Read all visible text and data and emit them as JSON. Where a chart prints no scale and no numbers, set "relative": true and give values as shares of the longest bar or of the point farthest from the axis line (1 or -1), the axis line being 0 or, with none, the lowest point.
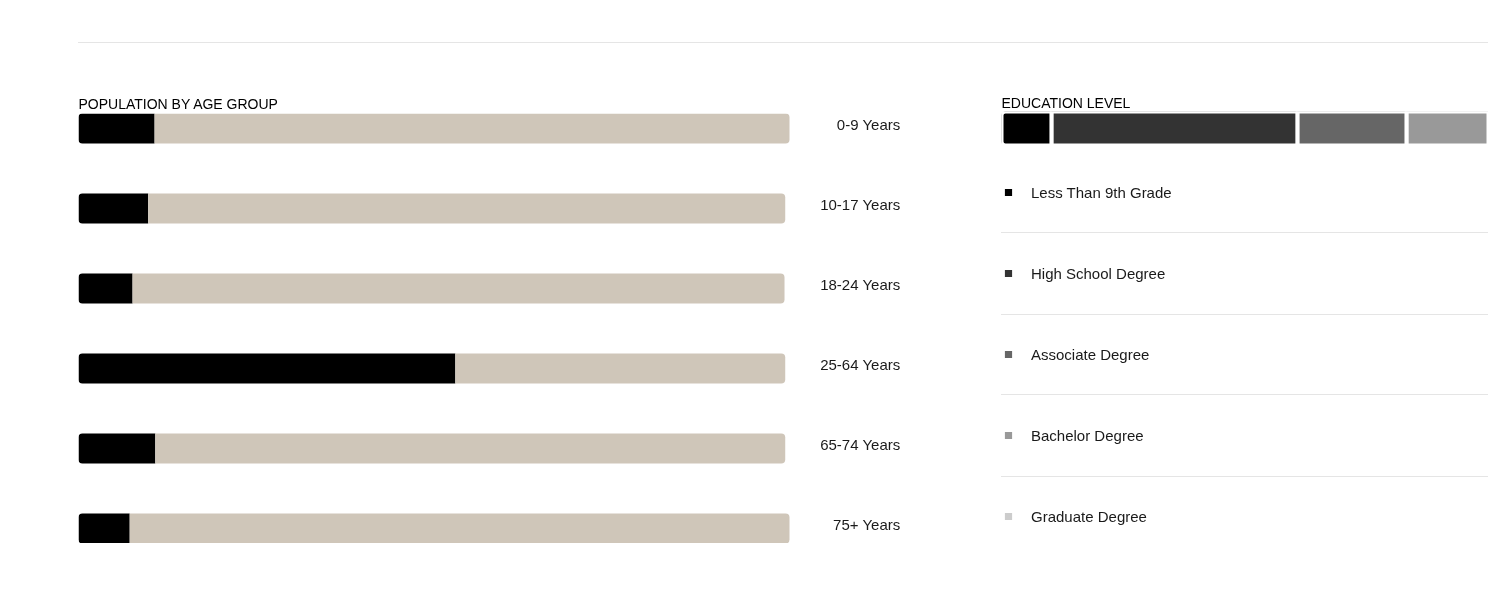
{
  "chart_data": [
    {
      "type": "bar",
      "title": "POPULATION BY AGE GROUP",
      "orientation": "horizontal",
      "stacked": true,
      "relative": true,
      "categories": [
        "0-9 Years",
        "10-17 Years",
        "18-24 Years",
        "25-64 Years",
        "65-74 Years",
        "75+ Years"
      ],
      "series": [
        {
          "color": "#000000",
          "values": [
            0.107,
            0.098,
            0.076,
            0.53,
            0.108,
            0.072
          ]
        },
        {
          "color": "#cfc6b9",
          "values": [
            0.893,
            0.896,
            0.917,
            0.464,
            0.886,
            0.928
          ]
        }
      ]
    },
    {
      "type": "bar",
      "title": "EDUCATION LEVEL",
      "orientation": "horizontal",
      "stacked": true,
      "relative": true,
      "categories": [
        null
      ],
      "series": [
        {
          "name": "Less Than 9th Grade",
          "color": "#000000",
          "values": [
            0.103
          ]
        },
        {
          "name": "High School Degree",
          "color": "#333333",
          "values": [
            0.505
          ]
        },
        {
          "name": "Associate Degree",
          "color": "#666666",
          "values": [
            0.224
          ]
        },
        {
          "name": "Bachelor Degree",
          "color": "#999999",
          "values": [
            0.168
          ]
        },
        {
          "name": "Graduate Degree",
          "color": "#cccccc",
          "values": [
            null
          ]
        }
      ],
      "legend": "bottom"
    }
  ]
}
